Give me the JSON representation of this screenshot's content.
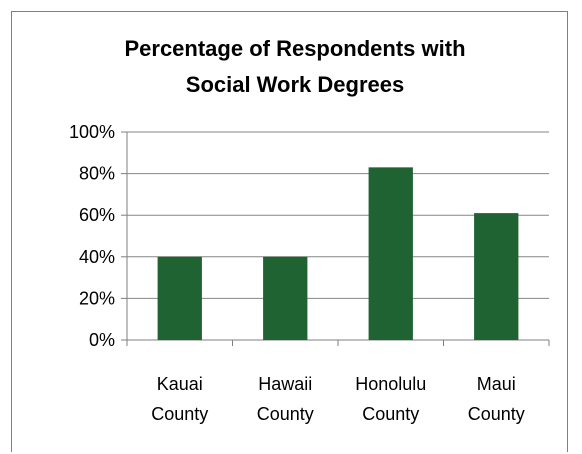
{
  "chart_data": {
    "type": "bar",
    "title_lines": [
      "Percentage of Respondents with",
      "Social Work Degrees"
    ],
    "categories": [
      [
        "Kauai",
        "County"
      ],
      [
        "Hawaii",
        "County"
      ],
      [
        "Honolulu",
        "County"
      ],
      [
        "Maui",
        "County"
      ]
    ],
    "values": [
      40,
      40,
      83,
      61
    ],
    "ylim": [
      0,
      100
    ],
    "yticks": [
      0,
      20,
      40,
      60,
      80,
      100
    ],
    "ytick_labels": [
      "0%",
      "20%",
      "40%",
      "60%",
      "80%",
      "100%"
    ],
    "grid": true,
    "legend": "none",
    "xlabel": "",
    "ylabel": "",
    "bar_color": "#1e6331",
    "gridline_color": "#868686",
    "frame_color": "#7f7f7f"
  }
}
